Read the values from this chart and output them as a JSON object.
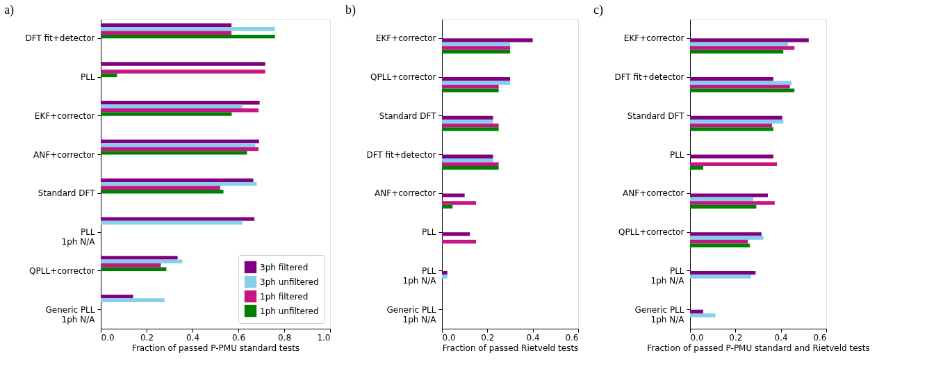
{
  "chart_data": [
    {
      "type": "bar",
      "orientation": "horizontal",
      "title": "a)",
      "xlabel": "Fraction of passed P-PMU standard tests",
      "categories": [
        "DFT fit+detector",
        "PLL",
        "EKF+corrector",
        "ANF+corrector",
        "Standard DFT",
        "PLL\n1ph N/A",
        "QPLL+corrector",
        "Generic PLL\n1ph N/A"
      ],
      "series": [
        {
          "name": "3ph filtered",
          "color": "#800080",
          "values": [
            0.57,
            0.717,
            0.693,
            0.69,
            0.665,
            0.67,
            0.335,
            0.141
          ]
        },
        {
          "name": "3ph unfiltered",
          "color": "#87ceeb",
          "values": [
            0.76,
            null,
            0.618,
            0.674,
            0.68,
            0.618,
            0.356,
            0.278
          ]
        },
        {
          "name": "1ph filtered",
          "color": "#c71585",
          "values": [
            0.57,
            0.717,
            0.688,
            0.688,
            0.521,
            null,
            0.262,
            null
          ]
        },
        {
          "name": "1ph unfiltered",
          "color": "#008000",
          "values": [
            0.76,
            0.071,
            0.571,
            0.638,
            0.535,
            null,
            0.286,
            null
          ]
        }
      ],
      "xlim": [
        0,
        1
      ],
      "xticks": [
        {
          "value": 0,
          "label": "0.0"
        },
        {
          "value": 0.2,
          "label": "0.2"
        },
        {
          "value": 0.4,
          "label": "0.4"
        },
        {
          "value": 0.6,
          "label": "0.6"
        },
        {
          "value": 0.8,
          "label": "0.8"
        },
        {
          "value": 1,
          "label": "1.0"
        }
      ],
      "legend": "bottom right",
      "grid": false
    },
    {
      "type": "bar",
      "orientation": "horizontal",
      "title": "b)",
      "xlabel": "Fraction of passed Rietveld tests",
      "categories": [
        "EKF+corrector",
        "QPLL+corrector",
        "Standard DFT",
        "DFT fit+detector",
        "ANF+corrector",
        "PLL",
        "PLL\n1ph N/A",
        "Generic PLL\n1ph N/A"
      ],
      "series": [
        {
          "color": "#800080",
          "values": [
            0.4,
            0.3,
            0.225,
            0.225,
            0.1,
            0.123,
            0.024,
            null
          ]
        },
        {
          "color": "#87ceeb",
          "values": [
            0.3,
            0.3,
            0.225,
            0.225,
            null,
            null,
            0.024,
            null
          ]
        },
        {
          "color": "#c71585",
          "values": [
            0.3,
            0.25,
            0.25,
            0.25,
            0.15,
            0.15,
            null,
            null
          ]
        },
        {
          "color": "#008000",
          "values": [
            0.3,
            0.25,
            0.25,
            0.25,
            0.047,
            null,
            null,
            null
          ]
        }
      ],
      "xlim": [
        0,
        0.6
      ],
      "xticks": [
        {
          "value": 0,
          "label": "0.0"
        },
        {
          "value": 0.2,
          "label": "0.2"
        },
        {
          "value": 0.4,
          "label": "0.4"
        },
        {
          "value": 0.6,
          "label": "0.6"
        }
      ],
      "grid": false
    },
    {
      "type": "bar",
      "orientation": "horizontal",
      "title": "c)",
      "xlabel": "Fraction of passed P-PMU standard and Rietveld tests",
      "categories": [
        "EKF+corrector",
        "DFT fit+detector",
        "Standard DFT",
        "PLL",
        "ANF+corrector",
        "QPLL+corrector",
        "PLL\n1ph N/A",
        "Generic PLL\n1ph N/A"
      ],
      "series": [
        {
          "color": "#800080",
          "values": [
            0.523,
            0.367,
            0.406,
            0.367,
            0.343,
            0.315,
            0.289,
            0.058
          ]
        },
        {
          "color": "#87ceeb",
          "values": [
            0.432,
            0.447,
            0.411,
            null,
            0.279,
            0.323,
            0.269,
            0.112
          ]
        },
        {
          "color": "#c71585",
          "values": [
            0.46,
            0.44,
            0.361,
            0.383,
            0.373,
            0.255,
            null,
            null
          ]
        },
        {
          "color": "#008000",
          "values": [
            0.411,
            0.46,
            0.367,
            0.058,
            0.292,
            0.263,
            null,
            null
          ]
        }
      ],
      "xlim": [
        0,
        0.6
      ],
      "xticks": [
        {
          "value": 0,
          "label": "0.0"
        },
        {
          "value": 0.2,
          "label": "0.2"
        },
        {
          "value": 0.4,
          "label": "0.4"
        },
        {
          "value": 0.6,
          "label": "0.6"
        }
      ],
      "grid": false
    }
  ]
}
